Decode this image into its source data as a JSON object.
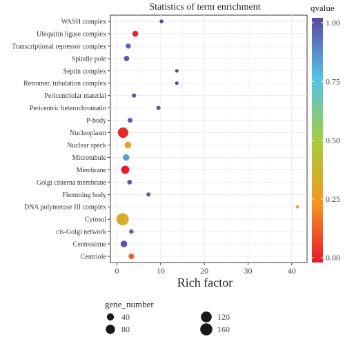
{
  "chart_data": {
    "type": "scatter",
    "title": "Statistics of term enrichment",
    "xlabel": "Rich factor",
    "ylabel": "",
    "xlim": [
      -1.5,
      43.5
    ],
    "xticks": [
      0,
      10,
      20,
      30,
      40
    ],
    "grid": true,
    "categories": [
      "WASH complex",
      "Ubiquitin ligase complex",
      "Transcriptional repressor complex",
      "Spindle pole",
      "Septin complex",
      "Retromer, tubulation complex",
      "Pericentriolar material",
      "Pericentric heterochromatin",
      "P-body",
      "Nucleoplasm",
      "Nuclear speck",
      "Microtubule",
      "Membrane",
      "Golgi cisterna membrane",
      "Flemming body",
      "DNA polymerase III complex",
      "Cytosol",
      "cis-Golgi network",
      "Centrosome",
      "Centriole"
    ],
    "points": [
      {
        "term": "WASH complex",
        "rich_factor": 10.2,
        "qvalue": 1.0,
        "gene_number": 5
      },
      {
        "term": "Ubiquitin ligase complex",
        "rich_factor": 4.2,
        "qvalue": 0.02,
        "gene_number": 22
      },
      {
        "term": "Transcriptional repressor complex",
        "rich_factor": 2.6,
        "qvalue": 0.95,
        "gene_number": 14
      },
      {
        "term": "Spindle pole",
        "rich_factor": 2.2,
        "qvalue": 0.97,
        "gene_number": 16
      },
      {
        "term": "Septin complex",
        "rich_factor": 13.7,
        "qvalue": 1.0,
        "gene_number": 3
      },
      {
        "term": "Retromer, tubulation complex",
        "rich_factor": 13.7,
        "qvalue": 1.0,
        "gene_number": 3
      },
      {
        "term": "Pericentriolar material",
        "rich_factor": 3.9,
        "qvalue": 0.97,
        "gene_number": 7
      },
      {
        "term": "Pericentric heterochromatin",
        "rich_factor": 9.5,
        "qvalue": 0.98,
        "gene_number": 6
      },
      {
        "term": "P-body",
        "rich_factor": 3.0,
        "qvalue": 0.96,
        "gene_number": 12
      },
      {
        "term": "Nucleoplasm",
        "rich_factor": 1.4,
        "qvalue": 0.03,
        "gene_number": 110
      },
      {
        "term": "Nuclear speck",
        "rich_factor": 2.5,
        "qvalue": 0.3,
        "gene_number": 32
      },
      {
        "term": "Microtubule",
        "rich_factor": 2.1,
        "qvalue": 0.82,
        "gene_number": 30
      },
      {
        "term": "Membrane",
        "rich_factor": 1.9,
        "qvalue": 0.0,
        "gene_number": 58
      },
      {
        "term": "Golgi cisterna membrane",
        "rich_factor": 2.9,
        "qvalue": 0.96,
        "gene_number": 11
      },
      {
        "term": "Flemming body",
        "rich_factor": 7.2,
        "qvalue": 0.97,
        "gene_number": 6
      },
      {
        "term": "DNA polymerase III complex",
        "rich_factor": 41.3,
        "qvalue": 0.32,
        "gene_number": 2
      },
      {
        "term": "Cytosol",
        "rich_factor": 1.3,
        "qvalue": 0.34,
        "gene_number": 165
      },
      {
        "term": "cis-Golgi network",
        "rich_factor": 3.3,
        "qvalue": 0.96,
        "gene_number": 8
      },
      {
        "term": "Centrosome",
        "rich_factor": 1.6,
        "qvalue": 0.98,
        "gene_number": 32
      },
      {
        "term": "Centriole",
        "rich_factor": 3.3,
        "qvalue": 0.14,
        "gene_number": 18
      }
    ],
    "color_legend": {
      "title": "qvalue",
      "min": 0,
      "max": 1,
      "ticks": [
        "0.00",
        "0.25",
        "0.50",
        "0.75",
        "1.00"
      ],
      "colors": [
        "#e8192c",
        "#f39a1e",
        "#a2cd3a",
        "#53c4ea",
        "#5e49a0"
      ]
    },
    "size_legend": {
      "title": "gene_number",
      "ticks": [
        40,
        80,
        120,
        160
      ]
    }
  }
}
